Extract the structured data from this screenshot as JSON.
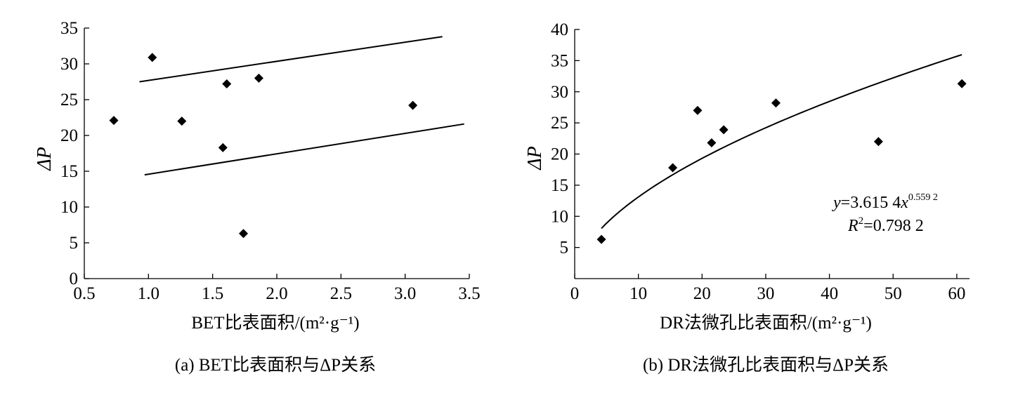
{
  "chart_data": [
    {
      "type": "scatter",
      "caption": "(a)  BET比表面积与ΔP关系",
      "xlabel": "BET比表面积/(m²·g⁻¹)",
      "ylabel": "ΔP",
      "xlim": [
        0.5,
        3.5
      ],
      "ylim": [
        0,
        35
      ],
      "xticks": [
        0.5,
        1.0,
        1.5,
        2.0,
        2.5,
        3.0,
        3.5
      ],
      "xtick_labels": [
        "0.5",
        "1.0",
        "1.5",
        "2.0",
        "2.5",
        "3.0",
        "3.5"
      ],
      "yticks": [
        0,
        5,
        10,
        15,
        20,
        25,
        30,
        35
      ],
      "ytick_labels": [
        "0",
        "5",
        "10",
        "15",
        "20",
        "25",
        "30",
        "35"
      ],
      "points": [
        {
          "x": 0.73,
          "y": 22.1
        },
        {
          "x": 1.03,
          "y": 30.9
        },
        {
          "x": 1.26,
          "y": 22.0
        },
        {
          "x": 1.58,
          "y": 18.3
        },
        {
          "x": 1.61,
          "y": 27.2
        },
        {
          "x": 1.74,
          "y": 6.3
        },
        {
          "x": 1.86,
          "y": 28.0
        },
        {
          "x": 3.06,
          "y": 24.2
        }
      ],
      "lines": [
        {
          "x1": 0.93,
          "y1": 27.5,
          "x2": 3.29,
          "y2": 33.8
        },
        {
          "x1": 0.97,
          "y1": 14.5,
          "x2": 3.46,
          "y2": 21.6
        }
      ],
      "grid": false
    },
    {
      "type": "scatter",
      "caption": "(b)  DR法微孔比表面积与ΔP关系",
      "xlabel": "DR法微孔比表面积/(m²·g⁻¹)",
      "ylabel": "ΔP",
      "xlim": [
        0,
        62
      ],
      "ylim": [
        0,
        40
      ],
      "xticks": [
        0,
        10,
        20,
        30,
        40,
        50,
        60
      ],
      "xtick_labels": [
        "0",
        "10",
        "20",
        "30",
        "40",
        "50",
        "60"
      ],
      "yticks": [
        5,
        10,
        15,
        20,
        25,
        30,
        35,
        40
      ],
      "ytick_labels": [
        "5",
        "10",
        "15",
        "20",
        "25",
        "30",
        "35",
        "40"
      ],
      "points": [
        {
          "x": 4.2,
          "y": 6.3
        },
        {
          "x": 15.4,
          "y": 17.8
        },
        {
          "x": 19.3,
          "y": 27.0
        },
        {
          "x": 21.5,
          "y": 21.8
        },
        {
          "x": 23.4,
          "y": 23.9
        },
        {
          "x": 31.6,
          "y": 28.2
        },
        {
          "x": 47.7,
          "y": 22.0
        },
        {
          "x": 60.8,
          "y": 31.3
        }
      ],
      "fit": {
        "a": 3.6154,
        "b": 0.5592,
        "x_start": 4.2,
        "x_end": 60.8
      },
      "equation": {
        "y_var": "y",
        "eq_mid": "=3.615 4",
        "x_var": "x",
        "exponent": "0.559 2",
        "r_var": "R",
        "r_exp": "2",
        "r_rest": "=0.798 2"
      },
      "grid": false
    }
  ]
}
